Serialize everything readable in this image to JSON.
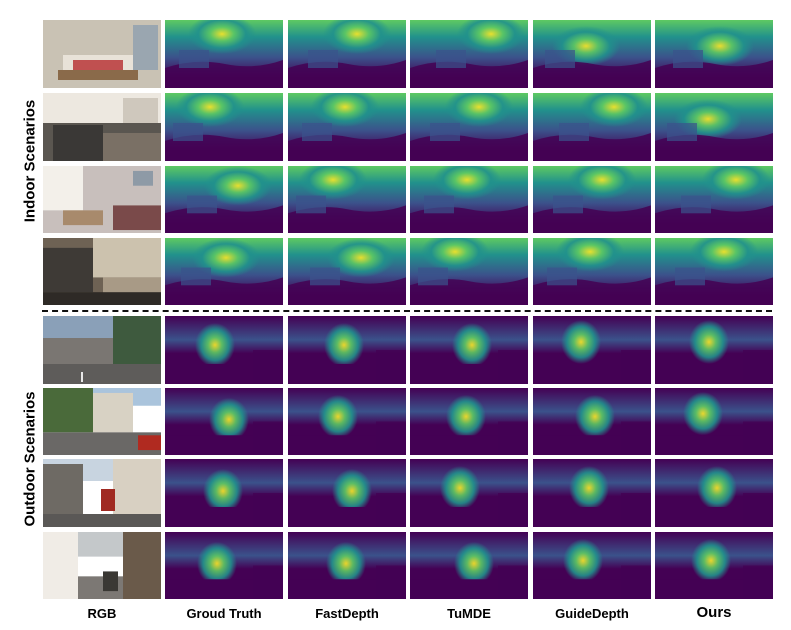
{
  "figure": {
    "column_labels": [
      "RGB",
      "Groud Truth",
      "FastDepth",
      "TuMDE",
      "GuideDepth",
      "Ours"
    ],
    "group_labels": {
      "indoor": "Indoor Scenarios",
      "outdoor": "Outdoor Scenarios"
    },
    "colormap": [
      "#440154",
      "#3b528b",
      "#21918c",
      "#5ec962",
      "#fde725"
    ]
  }
}
